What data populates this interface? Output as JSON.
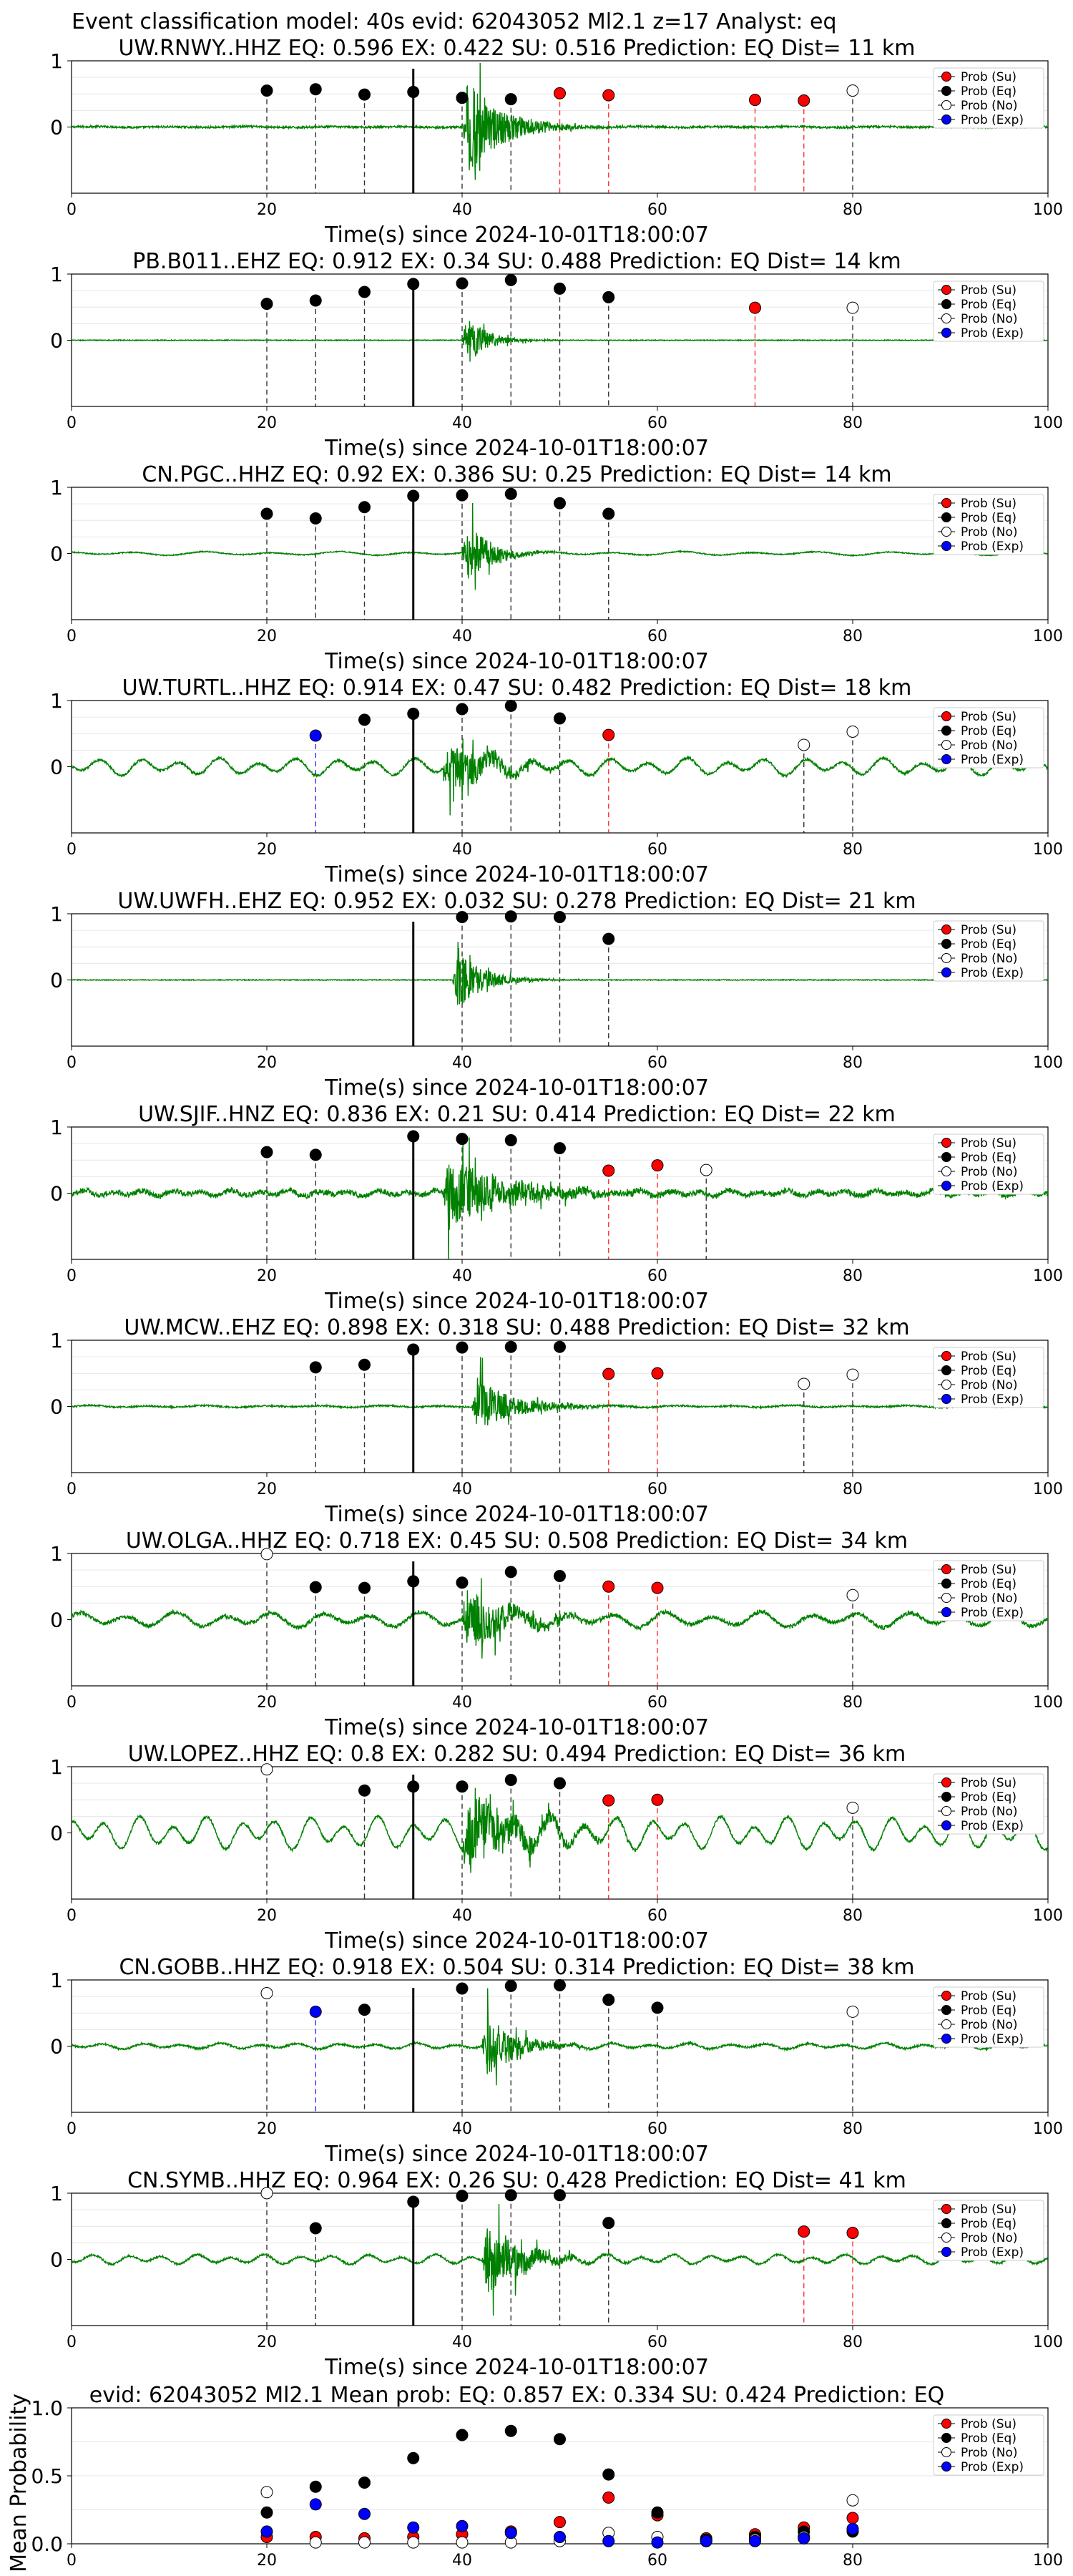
{
  "figure": {
    "suptitle": "Event classification model: 40s evid: 62043052 Ml2.1 z=17 Analyst: eq",
    "xlabel": "Time(s) since 2024-10-01T18:00:07",
    "legend": [
      "Prob (Su)",
      "Prob (Eq)",
      "Prob (No)",
      "Prob (Exp)"
    ],
    "colors": {
      "su": "#ff0000",
      "eq": "#000000",
      "no": "#ffffff",
      "exp": "#0000ff",
      "wave": "#008000",
      "pick": "#000000"
    }
  },
  "chart_data": [
    {
      "type": "line",
      "title": "UW.RNWY..HHZ   EQ: 0.596  EX: 0.422  SU: 0.516   Prediction: EQ    Dist= 11 km",
      "xlabel": "Time(s) since 2024-10-01T18:00:07",
      "xlim": [
        0,
        100
      ],
      "ylim": [
        -1,
        1
      ],
      "xticks": [
        0,
        20,
        40,
        60,
        80,
        100
      ],
      "yticks": [
        1,
        0
      ],
      "legend_loc": "upper right",
      "pick_time": 35,
      "waveform": {
        "noise": 0.015,
        "swell": 0.005,
        "period": 8,
        "onset": 40,
        "amp": 0.9,
        "decay": 3.5,
        "len": 14
      },
      "points": [
        {
          "x": 20,
          "y": 0.55,
          "cls": "eq"
        },
        {
          "x": 25,
          "y": 0.57,
          "cls": "eq"
        },
        {
          "x": 30,
          "y": 0.49,
          "cls": "eq"
        },
        {
          "x": 35,
          "y": 0.53,
          "cls": "eq"
        },
        {
          "x": 40,
          "y": 0.44,
          "cls": "eq"
        },
        {
          "x": 45,
          "y": 0.42,
          "cls": "eq"
        },
        {
          "x": 50,
          "y": 0.51,
          "cls": "su"
        },
        {
          "x": 55,
          "y": 0.48,
          "cls": "su"
        },
        {
          "x": 70,
          "y": 0.41,
          "cls": "su"
        },
        {
          "x": 75,
          "y": 0.4,
          "cls": "su"
        },
        {
          "x": 80,
          "y": 0.55,
          "cls": "no"
        }
      ]
    },
    {
      "type": "line",
      "title": "PB.B011..EHZ   EQ: 0.912  EX: 0.34  SU: 0.488   Prediction: EQ    Dist= 14 km",
      "xlabel": "Time(s) since 2024-10-01T18:00:07",
      "xlim": [
        0,
        100
      ],
      "ylim": [
        -1,
        1
      ],
      "xticks": [
        0,
        20,
        40,
        60,
        80,
        100
      ],
      "yticks": [
        1,
        0
      ],
      "legend_loc": "upper right",
      "pick_time": 35,
      "waveform": {
        "noise": 0.006,
        "swell": 0.0,
        "period": 8,
        "onset": 40,
        "amp": 0.5,
        "decay": 2.0,
        "len": 8
      },
      "points": [
        {
          "x": 20,
          "y": 0.55,
          "cls": "eq"
        },
        {
          "x": 25,
          "y": 0.6,
          "cls": "eq"
        },
        {
          "x": 30,
          "y": 0.73,
          "cls": "eq"
        },
        {
          "x": 35,
          "y": 0.85,
          "cls": "eq"
        },
        {
          "x": 40,
          "y": 0.86,
          "cls": "eq"
        },
        {
          "x": 45,
          "y": 0.91,
          "cls": "eq"
        },
        {
          "x": 50,
          "y": 0.78,
          "cls": "eq"
        },
        {
          "x": 55,
          "y": 0.65,
          "cls": "eq"
        },
        {
          "x": 70,
          "y": 0.49,
          "cls": "su"
        },
        {
          "x": 80,
          "y": 0.49,
          "cls": "no"
        }
      ]
    },
    {
      "type": "line",
      "title": "CN.PGC..HHZ   EQ: 0.92  EX: 0.386  SU: 0.25   Prediction: EQ    Dist= 14 km",
      "xlabel": "Time(s) since 2024-10-01T18:00:07",
      "xlim": [
        0,
        100
      ],
      "ylim": [
        -1,
        1
      ],
      "xticks": [
        0,
        20,
        40,
        60,
        80,
        100
      ],
      "yticks": [
        1,
        0
      ],
      "legend_loc": "upper right",
      "pick_time": 35,
      "waveform": {
        "noise": 0.008,
        "swell": 0.02,
        "period": 7,
        "onset": 40,
        "amp": 0.55,
        "decay": 2.5,
        "len": 9
      },
      "points": [
        {
          "x": 20,
          "y": 0.6,
          "cls": "eq"
        },
        {
          "x": 25,
          "y": 0.53,
          "cls": "eq"
        },
        {
          "x": 30,
          "y": 0.7,
          "cls": "eq"
        },
        {
          "x": 35,
          "y": 0.87,
          "cls": "eq"
        },
        {
          "x": 40,
          "y": 0.88,
          "cls": "eq"
        },
        {
          "x": 45,
          "y": 0.9,
          "cls": "eq"
        },
        {
          "x": 50,
          "y": 0.76,
          "cls": "eq"
        },
        {
          "x": 55,
          "y": 0.6,
          "cls": "eq"
        }
      ]
    },
    {
      "type": "line",
      "title": "UW.TURTL..HHZ   EQ: 0.914  EX: 0.47  SU: 0.482   Prediction: EQ    Dist= 18 km",
      "xlabel": "Time(s) since 2024-10-01T18:00:07",
      "xlim": [
        0,
        100
      ],
      "ylim": [
        -1,
        1
      ],
      "xticks": [
        0,
        20,
        40,
        60,
        80,
        100
      ],
      "yticks": [
        1,
        0
      ],
      "legend_loc": "upper right",
      "pick_time": 35,
      "waveform": {
        "noise": 0.02,
        "swell": 0.09,
        "period": 4,
        "onset": 38,
        "amp": 0.5,
        "decay": 4.0,
        "len": 14
      },
      "points": [
        {
          "x": 25,
          "y": 0.47,
          "cls": "exp"
        },
        {
          "x": 30,
          "y": 0.71,
          "cls": "eq"
        },
        {
          "x": 35,
          "y": 0.8,
          "cls": "eq"
        },
        {
          "x": 40,
          "y": 0.87,
          "cls": "eq"
        },
        {
          "x": 45,
          "y": 0.92,
          "cls": "eq"
        },
        {
          "x": 50,
          "y": 0.73,
          "cls": "eq"
        },
        {
          "x": 55,
          "y": 0.48,
          "cls": "su"
        },
        {
          "x": 75,
          "y": 0.33,
          "cls": "no"
        },
        {
          "x": 80,
          "y": 0.53,
          "cls": "no"
        }
      ]
    },
    {
      "type": "line",
      "title": "UW.UWFH..EHZ   EQ: 0.952  EX: 0.032  SU: 0.278   Prediction: EQ    Dist= 21 km",
      "xlabel": "Time(s) since 2024-10-01T18:00:07",
      "xlim": [
        0,
        100
      ],
      "ylim": [
        -1,
        1
      ],
      "xticks": [
        0,
        20,
        40,
        60,
        80,
        100
      ],
      "yticks": [
        1,
        0
      ],
      "legend_loc": "upper right",
      "pick_time": 35,
      "waveform": {
        "noise": 0.006,
        "swell": 0.0,
        "period": 8,
        "onset": 39,
        "amp": 0.6,
        "decay": 2.5,
        "len": 9
      },
      "points": [
        {
          "x": 40,
          "y": 0.95,
          "cls": "eq"
        },
        {
          "x": 45,
          "y": 0.96,
          "cls": "eq"
        },
        {
          "x": 50,
          "y": 0.95,
          "cls": "eq"
        },
        {
          "x": 55,
          "y": 0.62,
          "cls": "eq"
        }
      ]
    },
    {
      "type": "line",
      "title": "UW.SJIF..HNZ   EQ: 0.836  EX: 0.21  SU: 0.414   Prediction: EQ    Dist= 22 km",
      "xlabel": "Time(s) since 2024-10-01T18:00:07",
      "xlim": [
        0,
        100
      ],
      "ylim": [
        -1,
        1
      ],
      "xticks": [
        0,
        20,
        40,
        60,
        80,
        100
      ],
      "yticks": [
        1,
        0
      ],
      "legend_loc": "upper right",
      "pick_time": 35,
      "waveform": {
        "noise": 0.04,
        "swell": 0.03,
        "period": 3,
        "onset": 38,
        "amp": 0.6,
        "decay": 6.0,
        "len": 20
      },
      "points": [
        {
          "x": 20,
          "y": 0.62,
          "cls": "eq"
        },
        {
          "x": 25,
          "y": 0.58,
          "cls": "eq"
        },
        {
          "x": 35,
          "y": 0.86,
          "cls": "eq"
        },
        {
          "x": 40,
          "y": 0.82,
          "cls": "eq"
        },
        {
          "x": 45,
          "y": 0.8,
          "cls": "eq"
        },
        {
          "x": 50,
          "y": 0.68,
          "cls": "eq"
        },
        {
          "x": 55,
          "y": 0.34,
          "cls": "su"
        },
        {
          "x": 60,
          "y": 0.42,
          "cls": "su"
        },
        {
          "x": 65,
          "y": 0.35,
          "cls": "no"
        }
      ]
    },
    {
      "type": "line",
      "title": "UW.MCW..EHZ   EQ: 0.898  EX: 0.318  SU: 0.488   Prediction: EQ    Dist= 32 km",
      "xlabel": "Time(s) since 2024-10-01T18:00:07",
      "xlim": [
        0,
        100
      ],
      "ylim": [
        -1,
        1
      ],
      "xticks": [
        0,
        20,
        40,
        60,
        80,
        100
      ],
      "yticks": [
        1,
        0
      ],
      "legend_loc": "upper right",
      "pick_time": 35,
      "waveform": {
        "noise": 0.012,
        "swell": 0.01,
        "period": 6,
        "onset": 41,
        "amp": 0.45,
        "decay": 4.0,
        "len": 12
      },
      "points": [
        {
          "x": 25,
          "y": 0.59,
          "cls": "eq"
        },
        {
          "x": 30,
          "y": 0.63,
          "cls": "eq"
        },
        {
          "x": 35,
          "y": 0.86,
          "cls": "eq"
        },
        {
          "x": 40,
          "y": 0.89,
          "cls": "eq"
        },
        {
          "x": 45,
          "y": 0.9,
          "cls": "eq"
        },
        {
          "x": 50,
          "y": 0.9,
          "cls": "eq"
        },
        {
          "x": 55,
          "y": 0.49,
          "cls": "su"
        },
        {
          "x": 60,
          "y": 0.5,
          "cls": "su"
        },
        {
          "x": 75,
          "y": 0.34,
          "cls": "no"
        },
        {
          "x": 80,
          "y": 0.48,
          "cls": "no"
        }
      ]
    },
    {
      "type": "line",
      "title": "UW.OLGA..HHZ   EQ: 0.718  EX: 0.45  SU: 0.508   Prediction: EQ    Dist= 34 km",
      "xlabel": "Time(s) since 2024-10-01T18:00:07",
      "xlim": [
        0,
        100
      ],
      "ylim": [
        -1,
        1
      ],
      "xticks": [
        0,
        20,
        40,
        60,
        80,
        100
      ],
      "yticks": [
        1,
        0
      ],
      "legend_loc": "upper right",
      "pick_time": 35,
      "waveform": {
        "noise": 0.03,
        "swell": 0.08,
        "period": 5,
        "onset": 40,
        "amp": 0.55,
        "decay": 4.0,
        "len": 14
      },
      "points": [
        {
          "x": 20,
          "y": 0.99,
          "cls": "no"
        },
        {
          "x": 25,
          "y": 0.49,
          "cls": "eq"
        },
        {
          "x": 30,
          "y": 0.48,
          "cls": "eq"
        },
        {
          "x": 35,
          "y": 0.58,
          "cls": "eq"
        },
        {
          "x": 40,
          "y": 0.56,
          "cls": "eq"
        },
        {
          "x": 45,
          "y": 0.72,
          "cls": "eq"
        },
        {
          "x": 50,
          "y": 0.66,
          "cls": "eq"
        },
        {
          "x": 55,
          "y": 0.5,
          "cls": "su"
        },
        {
          "x": 60,
          "y": 0.48,
          "cls": "su"
        },
        {
          "x": 80,
          "y": 0.37,
          "cls": "no"
        }
      ]
    },
    {
      "type": "line",
      "title": "UW.LOPEZ..HHZ   EQ: 0.8  EX: 0.282  SU: 0.494   Prediction: EQ    Dist= 36 km",
      "xlabel": "Time(s) since 2024-10-01T18:00:07",
      "xlim": [
        0,
        100
      ],
      "ylim": [
        -1,
        1
      ],
      "xticks": [
        0,
        20,
        40,
        60,
        80,
        100
      ],
      "yticks": [
        1,
        0
      ],
      "legend_loc": "upper right",
      "pick_time": 35,
      "waveform": {
        "noise": 0.02,
        "swell": 0.17,
        "period": 3.5,
        "onset": 40,
        "amp": 0.6,
        "decay": 5.0,
        "len": 15
      },
      "points": [
        {
          "x": 20,
          "y": 0.96,
          "cls": "no"
        },
        {
          "x": 30,
          "y": 0.64,
          "cls": "eq"
        },
        {
          "x": 35,
          "y": 0.7,
          "cls": "eq"
        },
        {
          "x": 40,
          "y": 0.7,
          "cls": "eq"
        },
        {
          "x": 45,
          "y": 0.8,
          "cls": "eq"
        },
        {
          "x": 50,
          "y": 0.75,
          "cls": "eq"
        },
        {
          "x": 55,
          "y": 0.49,
          "cls": "su"
        },
        {
          "x": 60,
          "y": 0.5,
          "cls": "su"
        },
        {
          "x": 80,
          "y": 0.38,
          "cls": "no"
        }
      ]
    },
    {
      "type": "line",
      "title": "CN.GOBB..HHZ   EQ: 0.918  EX: 0.504  SU: 0.314   Prediction: EQ    Dist= 38 km",
      "xlabel": "Time(s) since 2024-10-01T18:00:07",
      "xlim": [
        0,
        100
      ],
      "ylim": [
        -1,
        1
      ],
      "xticks": [
        0,
        20,
        40,
        60,
        80,
        100
      ],
      "yticks": [
        1,
        0
      ],
      "legend_loc": "upper right",
      "pick_time": 35,
      "waveform": {
        "noise": 0.015,
        "swell": 0.03,
        "period": 4,
        "onset": 42,
        "amp": 0.6,
        "decay": 3.0,
        "len": 9
      },
      "points": [
        {
          "x": 20,
          "y": 0.8,
          "cls": "no"
        },
        {
          "x": 25,
          "y": 0.52,
          "cls": "exp"
        },
        {
          "x": 30,
          "y": 0.55,
          "cls": "eq"
        },
        {
          "x": 40,
          "y": 0.87,
          "cls": "eq"
        },
        {
          "x": 45,
          "y": 0.91,
          "cls": "eq"
        },
        {
          "x": 50,
          "y": 0.92,
          "cls": "eq"
        },
        {
          "x": 55,
          "y": 0.7,
          "cls": "eq"
        },
        {
          "x": 60,
          "y": 0.58,
          "cls": "eq"
        },
        {
          "x": 80,
          "y": 0.52,
          "cls": "no"
        }
      ]
    },
    {
      "type": "line",
      "title": "CN.SYMB..HHZ   EQ: 0.964  EX: 0.26  SU: 0.428   Prediction: EQ    Dist= 41 km",
      "xlabel": "Time(s) since 2024-10-01T18:00:07",
      "xlim": [
        0,
        100
      ],
      "ylim": [
        -1,
        1
      ],
      "xticks": [
        0,
        20,
        40,
        60,
        80,
        100
      ],
      "yticks": [
        1,
        0
      ],
      "legend_loc": "upper right",
      "pick_time": 35,
      "waveform": {
        "noise": 0.015,
        "swell": 0.05,
        "period": 3.5,
        "onset": 42,
        "amp": 0.65,
        "decay": 3.5,
        "len": 12
      },
      "points": [
        {
          "x": 20,
          "y": 1.0,
          "cls": "no"
        },
        {
          "x": 25,
          "y": 0.47,
          "cls": "eq"
        },
        {
          "x": 35,
          "y": 0.87,
          "cls": "eq"
        },
        {
          "x": 40,
          "y": 0.96,
          "cls": "eq"
        },
        {
          "x": 45,
          "y": 0.97,
          "cls": "eq"
        },
        {
          "x": 50,
          "y": 0.97,
          "cls": "eq"
        },
        {
          "x": 55,
          "y": 0.55,
          "cls": "eq"
        },
        {
          "x": 75,
          "y": 0.42,
          "cls": "su"
        },
        {
          "x": 80,
          "y": 0.4,
          "cls": "su"
        }
      ]
    },
    {
      "type": "scatter",
      "title": "evid: 62043052  Ml2.1   Mean prob:  EQ: 0.857  EX: 0.334  SU: 0.424   Prediction: EQ",
      "ylabel": "Mean Probability",
      "xlim": [
        0,
        100
      ],
      "ylim": [
        0,
        1.0
      ],
      "xticks": [
        0,
        20,
        40,
        60,
        80,
        100
      ],
      "yticks": [
        1.0,
        0.5,
        0.0
      ],
      "legend_loc": "upper right",
      "series": [
        {
          "name": "Prob (Su)",
          "cls": "su",
          "x": [
            20,
            25,
            30,
            35,
            40,
            45,
            50,
            55,
            60,
            65,
            70,
            75,
            80
          ],
          "y": [
            0.05,
            0.05,
            0.04,
            0.05,
            0.07,
            0.09,
            0.16,
            0.34,
            0.21,
            0.04,
            0.07,
            0.12,
            0.19
          ]
        },
        {
          "name": "Prob (Eq)",
          "cls": "eq",
          "x": [
            20,
            25,
            30,
            35,
            40,
            45,
            50,
            55,
            60,
            65,
            70,
            75,
            80
          ],
          "y": [
            0.23,
            0.42,
            0.45,
            0.63,
            0.8,
            0.83,
            0.77,
            0.51,
            0.23,
            0.03,
            0.05,
            0.09,
            0.09
          ]
        },
        {
          "name": "Prob (No)",
          "cls": "no",
          "x": [
            20,
            25,
            30,
            35,
            40,
            45,
            50,
            55,
            60,
            65,
            70,
            75,
            80
          ],
          "y": [
            0.38,
            0.01,
            0.01,
            0.01,
            0.01,
            0.01,
            0.02,
            0.08,
            0.05,
            0.02,
            0.03,
            0.05,
            0.32
          ]
        },
        {
          "name": "Prob (Exp)",
          "cls": "exp",
          "x": [
            20,
            25,
            30,
            35,
            40,
            45,
            50,
            55,
            60,
            65,
            70,
            75,
            80
          ],
          "y": [
            0.09,
            0.29,
            0.22,
            0.12,
            0.13,
            0.08,
            0.05,
            0.02,
            0.01,
            0.02,
            0.02,
            0.04,
            0.11
          ]
        }
      ]
    }
  ]
}
